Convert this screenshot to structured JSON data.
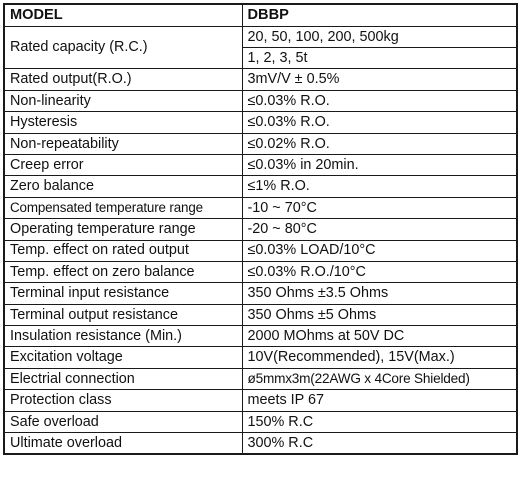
{
  "header": {
    "model_label": "MODEL",
    "model_value": "DBBP"
  },
  "rated_capacity": {
    "label": "Rated capacity (R.C.)",
    "values": [
      "20, 50, 100, 200, 500kg",
      "1, 2, 3, 5t"
    ]
  },
  "specs": [
    {
      "label": "Rated output(R.O.)",
      "value": "3mV/V ± 0.5%"
    },
    {
      "label": "Non-linearity",
      "value": "≤0.03% R.O."
    },
    {
      "label": "Hysteresis",
      "value": "≤0.03% R.O."
    },
    {
      "label": "Non-repeatability",
      "value": "≤0.02% R.O."
    },
    {
      "label": "Creep error",
      "value": "≤0.03% in 20min."
    },
    {
      "label": "Zero balance",
      "value": "≤1% R.O."
    },
    {
      "label": "Compensated temperature range",
      "value": "-10 ~ 70°C"
    },
    {
      "label": "Operating temperature range",
      "value": "-20 ~ 80°C"
    },
    {
      "label": "Temp. effect on rated output",
      "value": "≤0.03% LOAD/10°C"
    },
    {
      "label": "Temp. effect on zero balance",
      "value": "≤0.03% R.O./10°C"
    },
    {
      "label": "Terminal input resistance",
      "value": "350 Ohms ±3.5 Ohms"
    },
    {
      "label": "Terminal output resistance",
      "value": "350 Ohms ±5 Ohms"
    },
    {
      "label": "Insulation resistance (Min.)",
      "value": "2000 MOhms at 50V DC"
    },
    {
      "label": "Excitation voltage",
      "value": "10V(Recommended), 15V(Max.)"
    },
    {
      "label": "Electrial connection",
      "value": "ø5mmx3m(22AWG x 4Core Shielded)"
    },
    {
      "label": "Protection class",
      "value": "meets IP 67"
    },
    {
      "label": "Safe overload",
      "value": "150% R.C"
    },
    {
      "label": "Ultimate overload",
      "value": "300% R.C"
    }
  ]
}
